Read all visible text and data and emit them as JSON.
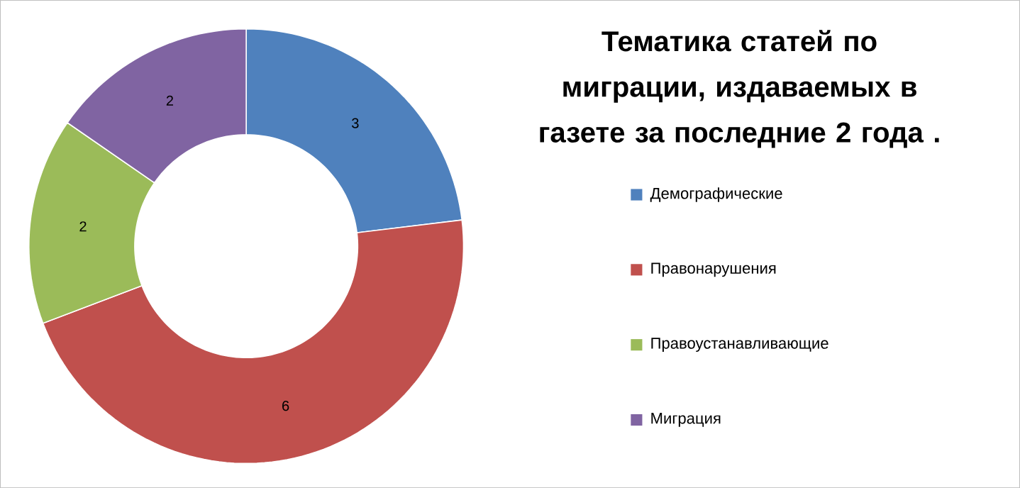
{
  "chart_data": {
    "type": "donut",
    "title": "Тематика статей по миграции, издаваемых в газете за последние 2 года .",
    "categories": [
      "Демографические",
      "Правонарушения",
      "Правоустанавливающие",
      "Миграция"
    ],
    "values": [
      3,
      6,
      2,
      2
    ],
    "colors": [
      "#4f81bd",
      "#c0504d",
      "#9bbb59",
      "#8064a2"
    ],
    "data_labels": true,
    "legend": "right"
  }
}
